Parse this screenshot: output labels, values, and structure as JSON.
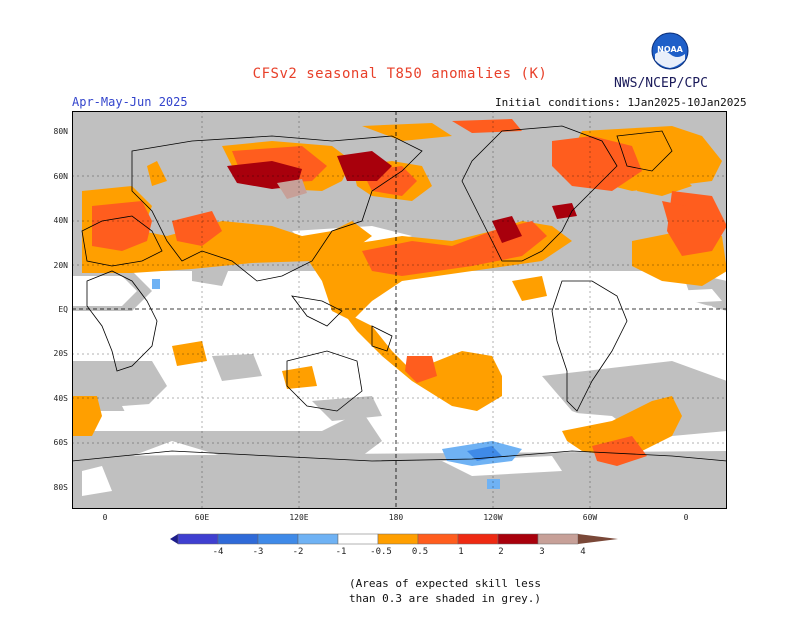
{
  "header": {
    "title": "CFSv2 seasonal T850 anomalies (K)",
    "agency": "NWS/NCEP/CPC",
    "period": "Apr-May-Jun 2025",
    "initial_conditions": "Initial conditions: 1Jan2025-10Jan2025"
  },
  "logo": {
    "text": "NOAA",
    "icon": "noaa-logo"
  },
  "map": {
    "lat_labels": [
      "80N",
      "60N",
      "40N",
      "20N",
      "EQ",
      "20S",
      "40S",
      "60S",
      "80S"
    ],
    "lon_labels": [
      "0",
      "60E",
      "120E",
      "180",
      "120W",
      "60W",
      "0"
    ],
    "colors": {
      "skill_grey": "#c0c0c0",
      "ocean_land": "#ffffff",
      "coast": "#000000"
    }
  },
  "colorbar": {
    "labels": [
      "-4",
      "-3",
      "-2",
      "-1",
      "-0.5",
      "0.5",
      "1",
      "2",
      "3",
      "4"
    ],
    "colors": [
      "#1d1d8a",
      "#3f3fd0",
      "#2f6ad8",
      "#3f8ae8",
      "#6fb2f4",
      "#ffffff",
      "#ff9f00",
      "#ff5d1e",
      "#ee2a12",
      "#a8000c",
      "#c7a098",
      "#7a4838"
    ]
  },
  "note": {
    "line1": "(Areas of expected skill less",
    "line2": "than 0.3 are shaded in grey.)"
  }
}
